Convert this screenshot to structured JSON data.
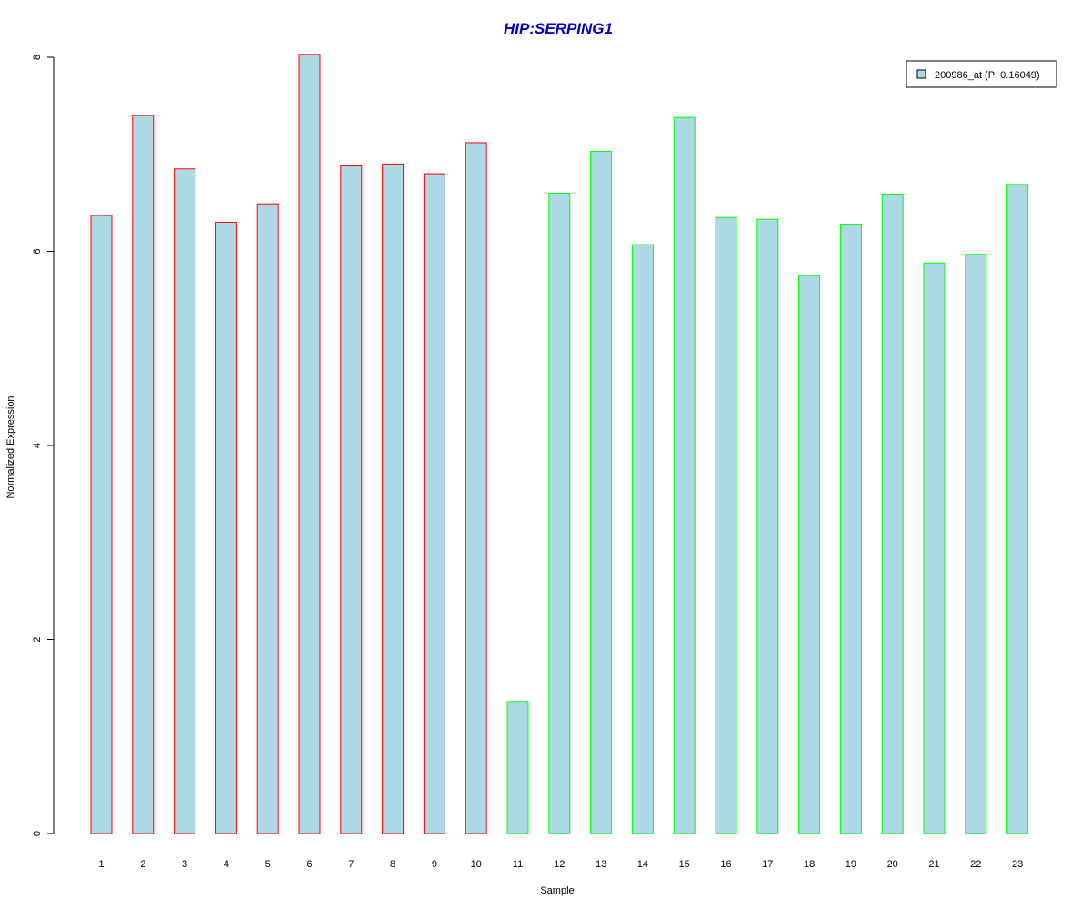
{
  "chart_data": {
    "type": "bar",
    "title": "HIP:SERPING1",
    "xlabel": "Sample",
    "ylabel": "Normalized Expression",
    "categories": [
      "1",
      "2",
      "3",
      "4",
      "5",
      "6",
      "7",
      "8",
      "9",
      "10",
      "11",
      "12",
      "13",
      "14",
      "15",
      "16",
      "17",
      "18",
      "19",
      "20",
      "21",
      "22",
      "23"
    ],
    "series": [
      {
        "name": "200986_at (P: 0.16049)",
        "values": [
          6.37,
          7.4,
          6.85,
          6.3,
          6.49,
          8.03,
          6.88,
          6.9,
          6.8,
          7.12,
          1.36,
          6.6,
          7.03,
          6.07,
          7.38,
          6.35,
          6.33,
          5.75,
          6.28,
          6.59,
          5.88,
          5.97,
          6.69
        ]
      }
    ],
    "groups": [
      1,
      1,
      1,
      1,
      1,
      1,
      1,
      1,
      1,
      1,
      2,
      2,
      2,
      2,
      2,
      2,
      2,
      2,
      2,
      2,
      2,
      2,
      2
    ],
    "ylim": [
      0,
      8
    ],
    "yticks": [
      0,
      2,
      4,
      6,
      8
    ],
    "grid": false,
    "legend_position": "top-right",
    "colors": {
      "bar_fill": "#add8e6",
      "group1_border": "#ff0000",
      "group2_border": "#00ff00",
      "title": "#0000cc"
    }
  }
}
